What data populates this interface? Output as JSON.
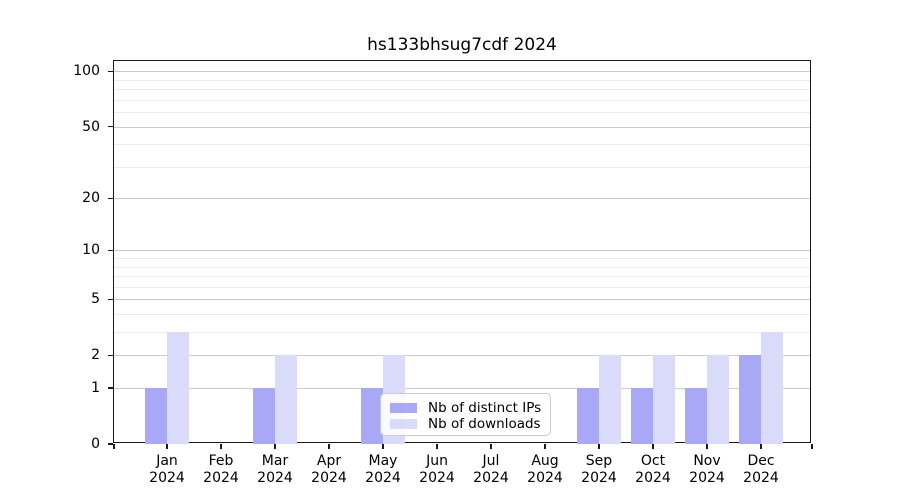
{
  "chart_data": {
    "type": "bar",
    "title": "hs133bhsug7cdf 2024",
    "categories": [
      {
        "month": "Jan",
        "year": "2024"
      },
      {
        "month": "Feb",
        "year": "2024"
      },
      {
        "month": "Mar",
        "year": "2024"
      },
      {
        "month": "Apr",
        "year": "2024"
      },
      {
        "month": "May",
        "year": "2024"
      },
      {
        "month": "Jun",
        "year": "2024"
      },
      {
        "month": "Jul",
        "year": "2024"
      },
      {
        "month": "Aug",
        "year": "2024"
      },
      {
        "month": "Sep",
        "year": "2024"
      },
      {
        "month": "Oct",
        "year": "2024"
      },
      {
        "month": "Nov",
        "year": "2024"
      },
      {
        "month": "Dec",
        "year": "2024"
      }
    ],
    "series": [
      {
        "name": "Nb of distinct IPs",
        "color": "#a8a8f6",
        "values": [
          1,
          0,
          1,
          0,
          1,
          0,
          0,
          0,
          1,
          1,
          1,
          2
        ]
      },
      {
        "name": "Nb of downloads",
        "color": "#dadafa",
        "values": [
          3,
          0,
          2,
          0,
          2,
          0,
          0,
          0,
          2,
          2,
          2,
          3
        ]
      }
    ],
    "yscale": "log10(1+x)",
    "ylim": [
      0,
      114
    ],
    "yticks_major": [
      0,
      1,
      2,
      5,
      10,
      20,
      50,
      100
    ],
    "yticks_minor": [
      3,
      4,
      6,
      7,
      8,
      9,
      30,
      40,
      60,
      70,
      80,
      90
    ],
    "grid": "horizontal",
    "legend_position": "lower center",
    "colors": {
      "grid_major": "#c9c9c9",
      "grid_minor": "#ececec",
      "axis": "#1a1a1a",
      "text": "#000000"
    }
  }
}
